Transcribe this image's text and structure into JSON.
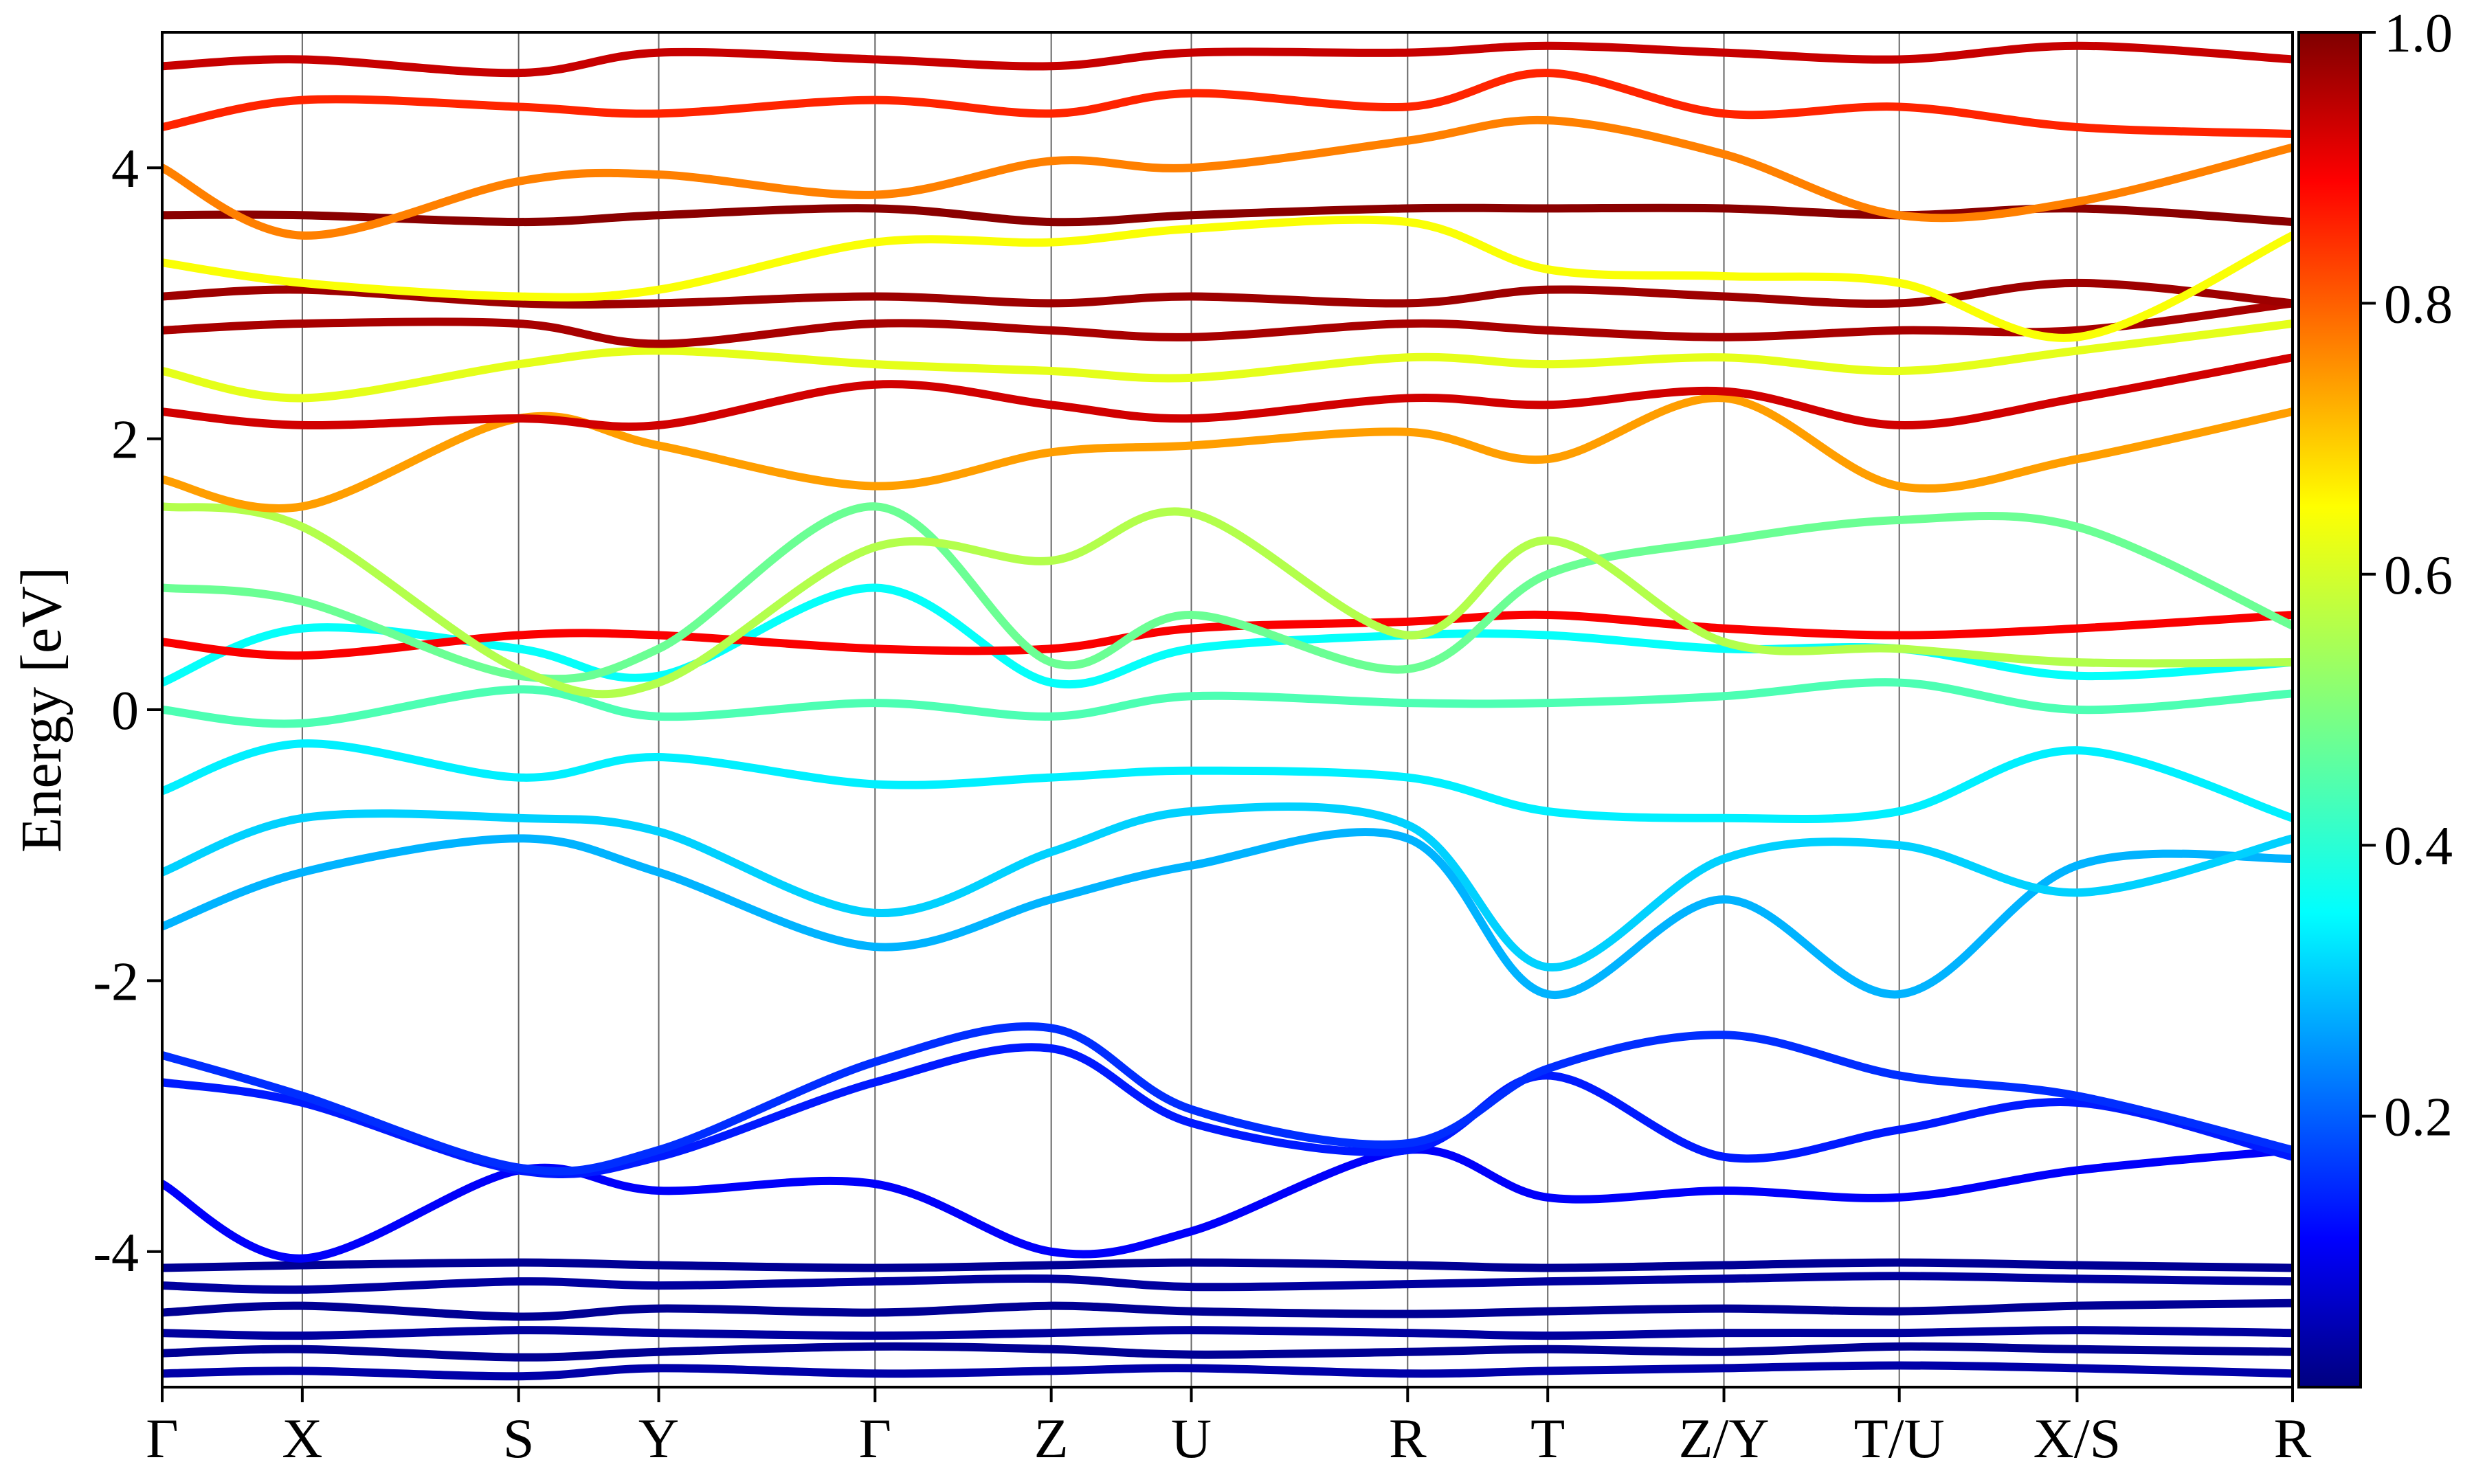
{
  "chart_data": {
    "type": "line",
    "title": "",
    "xlabel": "",
    "ylabel": "Energy [eV]",
    "ylim": [
      -5,
      5
    ],
    "x_range": [
      0,
      13
    ],
    "grid": "vertical lines at high-symmetry points",
    "legend": "none",
    "k_points": [
      "Γ",
      "X",
      "S",
      "Y",
      "Γ",
      "Z",
      "U",
      "R",
      "T",
      "Z/Y",
      "T/U",
      "X/S",
      "R"
    ],
    "k_positions": [
      0,
      0.855,
      2.175,
      3.03,
      4.35,
      5.425,
      6.28,
      7.6,
      8.455,
      9.53,
      10.6,
      11.685,
      13
    ],
    "y_ticks": [
      -4,
      -2,
      0,
      2,
      4
    ],
    "y_tick_labels": [
      "-4",
      "-2",
      "0",
      "2",
      "4"
    ],
    "colorbar": {
      "colormap": "jet",
      "min": 0,
      "max": 1,
      "ticks": [
        0.2,
        0.4,
        0.6,
        0.8,
        1.0
      ],
      "tick_labels": [
        "0.2",
        "0.4",
        "0.6",
        "0.8",
        "1.0"
      ]
    },
    "series": [
      {
        "values": [
          -4.12,
          -4.1,
          -4.08,
          -4.1,
          -4.12,
          -4.1,
          -4.08,
          -4.1,
          -4.12,
          -4.1,
          -4.08,
          -4.1,
          -4.12
        ],
        "weight": 0.02
      },
      {
        "values": [
          -4.25,
          -4.28,
          -4.22,
          -4.25,
          -4.22,
          -4.2,
          -4.26,
          -4.24,
          -4.22,
          -4.2,
          -4.18,
          -4.2,
          -4.22
        ],
        "weight": 0.03
      },
      {
        "values": [
          -4.45,
          -4.4,
          -4.48,
          -4.42,
          -4.45,
          -4.4,
          -4.44,
          -4.46,
          -4.44,
          -4.42,
          -4.44,
          -4.4,
          -4.38
        ],
        "weight": 0.02
      },
      {
        "values": [
          -4.6,
          -4.62,
          -4.58,
          -4.6,
          -4.62,
          -4.6,
          -4.58,
          -4.6,
          -4.62,
          -4.6,
          -4.6,
          -4.58,
          -4.6
        ],
        "weight": 0.03
      },
      {
        "values": [
          -4.75,
          -4.72,
          -4.78,
          -4.74,
          -4.7,
          -4.72,
          -4.76,
          -4.74,
          -4.72,
          -4.74,
          -4.7,
          -4.72,
          -4.74
        ],
        "weight": 0.02
      },
      {
        "values": [
          -4.9,
          -4.88,
          -4.92,
          -4.86,
          -4.9,
          -4.88,
          -4.86,
          -4.9,
          -4.88,
          -4.86,
          -4.84,
          -4.86,
          -4.9
        ],
        "weight": 0.04
      },
      {
        "values": [
          -3.5,
          -4.05,
          -3.4,
          -3.55,
          -3.5,
          -4.0,
          -3.85,
          -3.25,
          -3.6,
          -3.55,
          -3.6,
          -3.4,
          -3.25
        ],
        "weight": 0.12
      },
      {
        "values": [
          -2.75,
          -2.9,
          -3.4,
          -3.3,
          -2.75,
          -2.5,
          -3.05,
          -3.25,
          -2.7,
          -3.3,
          -3.1,
          -2.9,
          -3.3
        ],
        "weight": 0.15
      },
      {
        "values": [
          -2.55,
          -2.85,
          -3.38,
          -3.25,
          -2.6,
          -2.35,
          -2.95,
          -3.2,
          -2.65,
          -2.4,
          -2.7,
          -2.85,
          -3.25
        ],
        "weight": 0.17
      },
      {
        "values": [
          -1.6,
          -1.2,
          -0.95,
          -1.2,
          -1.75,
          -1.4,
          -1.15,
          -0.95,
          -2.1,
          -1.4,
          -2.1,
          -1.15,
          -1.1
        ],
        "weight": 0.3
      },
      {
        "values": [
          -1.2,
          -0.8,
          -0.8,
          -0.9,
          -1.5,
          -1.05,
          -0.75,
          -0.85,
          -1.9,
          -1.1,
          -1.0,
          -1.35,
          -0.95
        ],
        "weight": 0.33
      },
      {
        "values": [
          -0.6,
          -0.25,
          -0.5,
          -0.35,
          -0.55,
          -0.5,
          -0.45,
          -0.5,
          -0.75,
          -0.8,
          -0.75,
          -0.3,
          -0.8
        ],
        "weight": 0.36
      },
      {
        "values": [
          0.0,
          -0.1,
          0.15,
          -0.05,
          0.05,
          -0.05,
          0.1,
          0.05,
          0.05,
          0.1,
          0.2,
          0.0,
          0.12
        ],
        "weight": 0.45
      },
      {
        "values": [
          0.2,
          0.6,
          0.45,
          0.25,
          0.9,
          0.2,
          0.45,
          0.55,
          0.55,
          0.45,
          0.45,
          0.25,
          0.35
        ],
        "weight": 0.38
      },
      {
        "values": [
          0.5,
          0.4,
          0.55,
          0.55,
          0.45,
          0.45,
          0.6,
          0.65,
          0.7,
          0.6,
          0.55,
          0.6,
          0.7
        ],
        "weight": 0.88
      },
      {
        "values": [
          0.9,
          0.8,
          0.25,
          0.45,
          1.5,
          0.35,
          0.7,
          0.3,
          1.0,
          1.25,
          1.4,
          1.35,
          0.62
        ],
        "weight": 0.48
      },
      {
        "values": [
          1.5,
          1.35,
          0.3,
          0.2,
          1.2,
          1.1,
          1.45,
          0.55,
          1.25,
          0.5,
          0.45,
          0.35,
          0.35
        ],
        "weight": 0.55
      },
      {
        "values": [
          1.7,
          1.5,
          2.15,
          1.95,
          1.65,
          1.9,
          1.95,
          2.05,
          1.85,
          2.3,
          1.65,
          1.85,
          2.2
        ],
        "weight": 0.72
      },
      {
        "values": [
          2.2,
          2.1,
          2.15,
          2.1,
          2.4,
          2.25,
          2.15,
          2.3,
          2.25,
          2.35,
          2.1,
          2.3,
          2.6
        ],
        "weight": 0.92
      },
      {
        "values": [
          2.5,
          2.3,
          2.55,
          2.65,
          2.55,
          2.5,
          2.45,
          2.6,
          2.55,
          2.6,
          2.5,
          2.65,
          2.85
        ],
        "weight": 0.6
      },
      {
        "values": [
          2.8,
          2.85,
          2.85,
          2.7,
          2.85,
          2.8,
          2.75,
          2.85,
          2.8,
          2.75,
          2.8,
          2.8,
          3.0
        ],
        "weight": 0.96
      },
      {
        "values": [
          3.05,
          3.1,
          3.0,
          3.0,
          3.05,
          3.0,
          3.05,
          3.0,
          3.1,
          3.05,
          3.0,
          3.15,
          3.0
        ],
        "weight": 0.97
      },
      {
        "values": [
          3.3,
          3.15,
          3.05,
          3.1,
          3.45,
          3.45,
          3.55,
          3.6,
          3.25,
          3.2,
          3.15,
          2.75,
          3.5
        ],
        "weight": 0.62
      },
      {
        "values": [
          3.65,
          3.65,
          3.6,
          3.65,
          3.7,
          3.6,
          3.65,
          3.7,
          3.7,
          3.7,
          3.65,
          3.7,
          3.6
        ],
        "weight": 0.99
      },
      {
        "values": [
          4.0,
          3.5,
          3.9,
          3.95,
          3.8,
          4.05,
          4.0,
          4.2,
          4.35,
          4.1,
          3.65,
          3.75,
          4.15
        ],
        "weight": 0.75
      },
      {
        "values": [
          4.3,
          4.5,
          4.45,
          4.4,
          4.5,
          4.4,
          4.55,
          4.45,
          4.7,
          4.4,
          4.45,
          4.3,
          4.25
        ],
        "weight": 0.84
      },
      {
        "values": [
          4.75,
          4.8,
          4.7,
          4.85,
          4.8,
          4.75,
          4.85,
          4.85,
          4.9,
          4.85,
          4.8,
          4.9,
          4.8
        ],
        "weight": 0.93
      }
    ]
  }
}
